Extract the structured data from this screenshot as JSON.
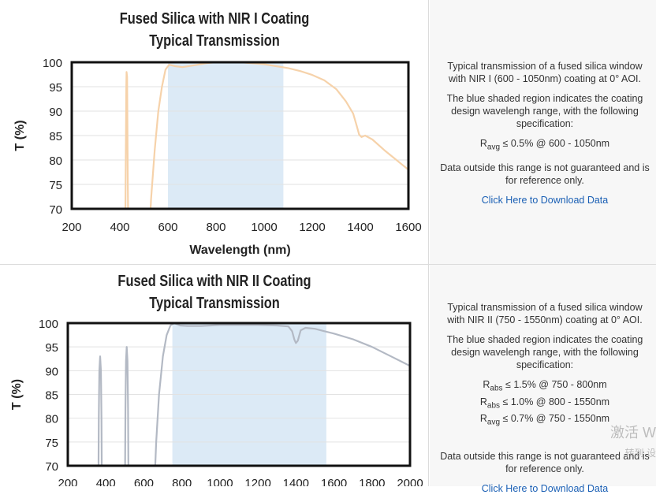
{
  "charts": [
    {
      "title1": "Fused Silica with NIR I Coating",
      "title2": "Typical Transmission",
      "description": "Typical transmission of a fused silica window with NIR I (600 - 1050nm) coating at 0° AOI.",
      "shaded_note": "The blue shaded region indicates the coating design wavelengh range, with the following specification:",
      "specs": [
        {
          "sym": "R",
          "sub": "avg",
          "text": " ≤ 0.5% @ 600 - 1050nm"
        }
      ],
      "disclaimer": "Data outside this range is not guaranteed and is for reference only.",
      "download": "Click Here to Download Data"
    },
    {
      "title1": "Fused Silica with NIR II Coating",
      "title2": "Typical Transmission",
      "description": "Typical transmission of a fused silica window with NIR II (750 - 1550nm) coating at 0° AOI.",
      "shaded_note": "The blue shaded region indicates the coating design wavelengh range, with the following specification:",
      "specs": [
        {
          "sym": "R",
          "sub": "abs",
          "text": " ≤ 1.5% @ 750 - 800nm"
        },
        {
          "sym": "R",
          "sub": "abs",
          "text": " ≤ 1.0% @ 800 - 1550nm"
        },
        {
          "sym": "R",
          "sub": "avg",
          "text": " ≤ 0.7% @ 750 - 1550nm"
        }
      ],
      "disclaimer": "Data outside this range is not guaranteed and is for reference only.",
      "download": "Click Here to Download Data"
    }
  ],
  "watermark": {
    "line1": "激活 W",
    "line2": "转到 设"
  },
  "chart_data": [
    {
      "type": "line",
      "title": "Fused Silica with NIR I Coating Typical Transmission",
      "xlabel": "Wavelength (nm)",
      "ylabel": "T (%)",
      "xlim": [
        200,
        1600
      ],
      "ylim": [
        70,
        100
      ],
      "xticks": [
        200,
        400,
        600,
        800,
        1000,
        1200,
        1400,
        1600
      ],
      "yticks": [
        70,
        75,
        80,
        85,
        90,
        95,
        100
      ],
      "shaded_range": [
        600,
        1080
      ],
      "grid": true,
      "color": "#f6d2aa",
      "series": [
        {
          "x": [
            422,
            425,
            427,
            428,
            430,
            431,
            433,
            436
          ],
          "y": [
            60,
            82,
            95,
            98,
            97,
            90,
            75,
            60
          ]
        },
        {
          "x": [
            518,
            530,
            545,
            560,
            575,
            590,
            605,
            630,
            660,
            700,
            760,
            800,
            900,
            1000,
            1050,
            1100,
            1150,
            1200,
            1250,
            1300,
            1340,
            1370,
            1385,
            1395,
            1405,
            1420,
            1450,
            1500,
            1550,
            1600
          ],
          "y": [
            60,
            72,
            82,
            90,
            95,
            98.5,
            99.5,
            99.2,
            99.0,
            99.3,
            99.8,
            100,
            100,
            99.6,
            99.2,
            98.8,
            98.2,
            97.4,
            96.3,
            94.5,
            92.0,
            89.5,
            87.0,
            85.2,
            84.7,
            85.0,
            84.2,
            82.0,
            80.0,
            78.0
          ]
        }
      ]
    },
    {
      "type": "line",
      "title": "Fused Silica with NIR II Coating Typical Transmission",
      "xlabel": "",
      "ylabel": "T (%)",
      "xlim": [
        200,
        2000
      ],
      "ylim": [
        70,
        100
      ],
      "xticks": [
        200,
        400,
        600,
        800,
        1000,
        1200,
        1400,
        1600,
        1800,
        2000
      ],
      "yticks": [
        70,
        75,
        80,
        85,
        90,
        95,
        100
      ],
      "shaded_range": [
        750,
        1560
      ],
      "grid": true,
      "color": "#b3b9c4",
      "series": [
        {
          "x": [
            360,
            363,
            366,
            370,
            374,
            377,
            380
          ],
          "y": [
            60,
            80,
            90,
            93,
            90,
            80,
            60
          ]
        },
        {
          "x": [
            500,
            503,
            506,
            510,
            514,
            517,
            520
          ],
          "y": [
            60,
            82,
            92,
            95,
            92,
            82,
            60
          ]
        },
        {
          "x": [
            650,
            665,
            680,
            700,
            720,
            740,
            760,
            790,
            830,
            900,
            1000,
            1100,
            1200,
            1300,
            1360,
            1380,
            1392,
            1400,
            1410,
            1425,
            1450,
            1500,
            1550,
            1600,
            1700,
            1800,
            1900,
            2000
          ],
          "y": [
            60,
            75,
            85,
            93,
            97.5,
            99.5,
            100,
            99.5,
            99.4,
            99.4,
            99.6,
            99.6,
            99.6,
            99.5,
            99.3,
            98.3,
            96.5,
            95.8,
            96.3,
            98.5,
            99.0,
            98.8,
            98.3,
            97.8,
            96.6,
            95.0,
            93.0,
            91.0
          ]
        }
      ]
    }
  ]
}
